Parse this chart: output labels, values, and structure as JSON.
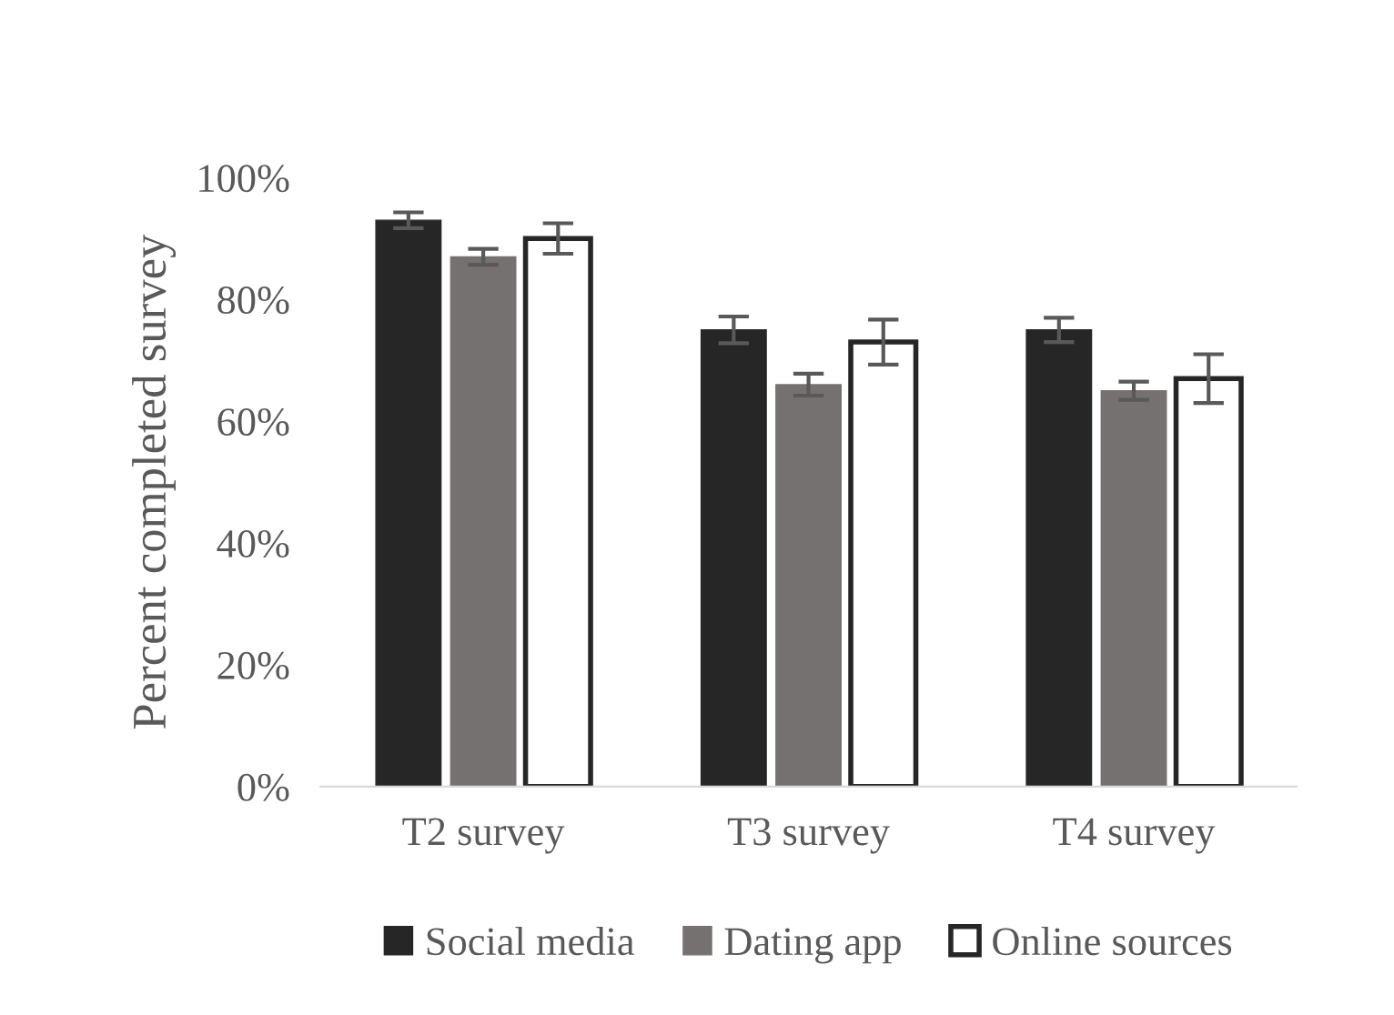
{
  "chart_data": {
    "type": "bar",
    "ylabel": "Percent completed survey",
    "categories": [
      "T2 survey",
      "T3 survey",
      "T4 survey"
    ],
    "series": [
      {
        "name": "Social media",
        "color": "#262626",
        "values": [
          93,
          75,
          75
        ],
        "errors": [
          1.3,
          2.2,
          2
        ]
      },
      {
        "name": "Dating app",
        "color": "#767171",
        "values": [
          87,
          66,
          65
        ],
        "errors": [
          1.3,
          1.8,
          1.5
        ]
      },
      {
        "name": "Online sources",
        "color": "#ffffff",
        "values": [
          90,
          73,
          67
        ],
        "errors": [
          2.5,
          3.7,
          4
        ]
      }
    ],
    "ylim": [
      0,
      100
    ],
    "yticks": [
      {
        "value": 0,
        "label": "0%"
      },
      {
        "value": 20,
        "label": "20%"
      },
      {
        "value": 40,
        "label": "40%"
      },
      {
        "value": 60,
        "label": "60%"
      },
      {
        "value": 80,
        "label": "80%"
      },
      {
        "value": 100,
        "label": "100%"
      }
    ],
    "grid": false,
    "legend": "bottom"
  }
}
